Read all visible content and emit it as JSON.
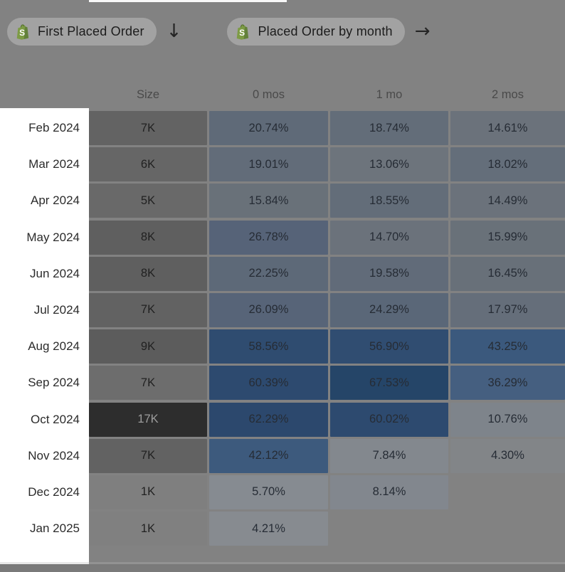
{
  "toolbar": {
    "pill1_label": "First Placed Order",
    "pill2_label": "Placed Order by month",
    "arrow_down": "↓",
    "arrow_right": "→"
  },
  "table": {
    "columns": [
      "Size",
      "0 mos",
      "1 mo",
      "2 mos"
    ],
    "rows": [
      {
        "label": "Feb 2024",
        "size": "7K",
        "size_bg": "#636363",
        "size_fg": "#212121",
        "cells": [
          {
            "v": "20.74%",
            "bg": "#5F6A78"
          },
          {
            "v": "18.74%",
            "bg": "#636D79"
          },
          {
            "v": "14.61%",
            "bg": "#6B727B"
          }
        ]
      },
      {
        "label": "Mar 2024",
        "size": "6K",
        "size_bg": "#666666",
        "size_fg": "#212121",
        "cells": [
          {
            "v": "19.01%",
            "bg": "#626C79"
          },
          {
            "v": "13.06%",
            "bg": "#6D747C"
          },
          {
            "v": "18.02%",
            "bg": "#646E7A"
          }
        ]
      },
      {
        "label": "Apr 2024",
        "size": "5K",
        "size_bg": "#696969",
        "size_fg": "#212121",
        "cells": [
          {
            "v": "15.84%",
            "bg": "#697179"
          },
          {
            "v": "18.55%",
            "bg": "#636D79"
          },
          {
            "v": "14.49%",
            "bg": "#6B727B"
          }
        ]
      },
      {
        "label": "May 2024",
        "size": "8K",
        "size_bg": "#5F5F5F",
        "size_fg": "#212121",
        "cells": [
          {
            "v": "26.78%",
            "bg": "#566378"
          },
          {
            "v": "14.70%",
            "bg": "#6B727B"
          },
          {
            "v": "15.99%",
            "bg": "#697179"
          }
        ]
      },
      {
        "label": "Jun 2024",
        "size": "8K",
        "size_bg": "#5F5F5F",
        "size_fg": "#212121",
        "cells": [
          {
            "v": "22.25%",
            "bg": "#5D6978"
          },
          {
            "v": "19.58%",
            "bg": "#616B79"
          },
          {
            "v": "16.45%",
            "bg": "#687079"
          }
        ]
      },
      {
        "label": "Jul 2024",
        "size": "7K",
        "size_bg": "#626262",
        "size_fg": "#212121",
        "cells": [
          {
            "v": "26.09%",
            "bg": "#576478"
          },
          {
            "v": "24.29%",
            "bg": "#5A6778"
          },
          {
            "v": "17.97%",
            "bg": "#656E7A"
          }
        ]
      },
      {
        "label": "Aug 2024",
        "size": "9K",
        "size_bg": "#5C5C5C",
        "size_fg": "#212121",
        "cells": [
          {
            "v": "58.56%",
            "bg": "#2F4C70"
          },
          {
            "v": "56.90%",
            "bg": "#304D71"
          },
          {
            "v": "43.25%",
            "bg": "#3B597D"
          }
        ]
      },
      {
        "label": "Sep 2024",
        "size": "7K",
        "size_bg": "#6D6D6D",
        "size_fg": "#212121",
        "cells": [
          {
            "v": "60.39%",
            "bg": "#2D4A6F"
          },
          {
            "v": "67.53%",
            "bg": "#254568"
          },
          {
            "v": "36.29%",
            "bg": "#455F80"
          }
        ]
      },
      {
        "label": "Oct 2024",
        "size": "17K",
        "size_bg": "#2D2D2D",
        "size_fg": "#9D9D9D",
        "cells": [
          {
            "v": "62.29%",
            "bg": "#2C486D"
          },
          {
            "v": "60.02%",
            "bg": "#2D4A6F"
          },
          {
            "v": "10.76%",
            "bg": "#7E848B"
          }
        ]
      },
      {
        "label": "Nov 2024",
        "size": "7K",
        "size_bg": "#626262",
        "size_fg": "#212121",
        "cells": [
          {
            "v": "42.12%",
            "bg": "#3D5A7D"
          },
          {
            "v": "7.84%",
            "bg": "#83888E"
          },
          {
            "v": "4.30%",
            "bg": "#828588"
          }
        ]
      },
      {
        "label": "Dec 2024",
        "size": "1K",
        "size_bg": "#7F7F7F",
        "size_fg": "#212121",
        "cells": [
          {
            "v": "5.70%",
            "bg": "#868B91"
          },
          {
            "v": "8.14%",
            "bg": "#82878E"
          },
          null
        ]
      },
      {
        "label": "Jan 2025",
        "size": "1K",
        "size_bg": "#808080",
        "size_fg": "#212121",
        "cells": [
          {
            "v": "4.21%",
            "bg": "#878B90"
          },
          null,
          null
        ]
      }
    ]
  },
  "chart_data": {
    "type": "heatmap",
    "title": "Cohort retention — First Placed Order → Placed Order by month",
    "row_labels": [
      "Feb 2024",
      "Mar 2024",
      "Apr 2024",
      "May 2024",
      "Jun 2024",
      "Jul 2024",
      "Aug 2024",
      "Sep 2024",
      "Oct 2024",
      "Nov 2024",
      "Dec 2024",
      "Jan 2025"
    ],
    "col_labels": [
      "0 mos",
      "1 mo",
      "2 mos"
    ],
    "cohort_sizes": [
      "7K",
      "6K",
      "5K",
      "8K",
      "8K",
      "7K",
      "9K",
      "7K",
      "17K",
      "7K",
      "1K",
      "1K"
    ],
    "values_pct": [
      [
        20.74,
        18.74,
        14.61
      ],
      [
        19.01,
        13.06,
        18.02
      ],
      [
        15.84,
        18.55,
        14.49
      ],
      [
        26.78,
        14.7,
        15.99
      ],
      [
        22.25,
        19.58,
        16.45
      ],
      [
        26.09,
        24.29,
        17.97
      ],
      [
        58.56,
        56.9,
        43.25
      ],
      [
        60.39,
        67.53,
        36.29
      ],
      [
        62.29,
        60.02,
        10.76
      ],
      [
        42.12,
        7.84,
        4.3
      ],
      [
        5.7,
        8.14,
        null
      ],
      [
        4.21,
        null,
        null
      ]
    ],
    "legend_position": "none",
    "grid": false
  },
  "colors": {
    "page_overlay_bg": "#828282",
    "row_label_column_bg": "#FFFFFF",
    "pill_bg": "#A2A2A2",
    "heat_max_blue": "#254568",
    "heat_min_gray": "#878B90",
    "size_max_dark": "#2D2D2D",
    "bottom_bar": "#7A7A7A",
    "shopify_green": "#7D9B45"
  }
}
